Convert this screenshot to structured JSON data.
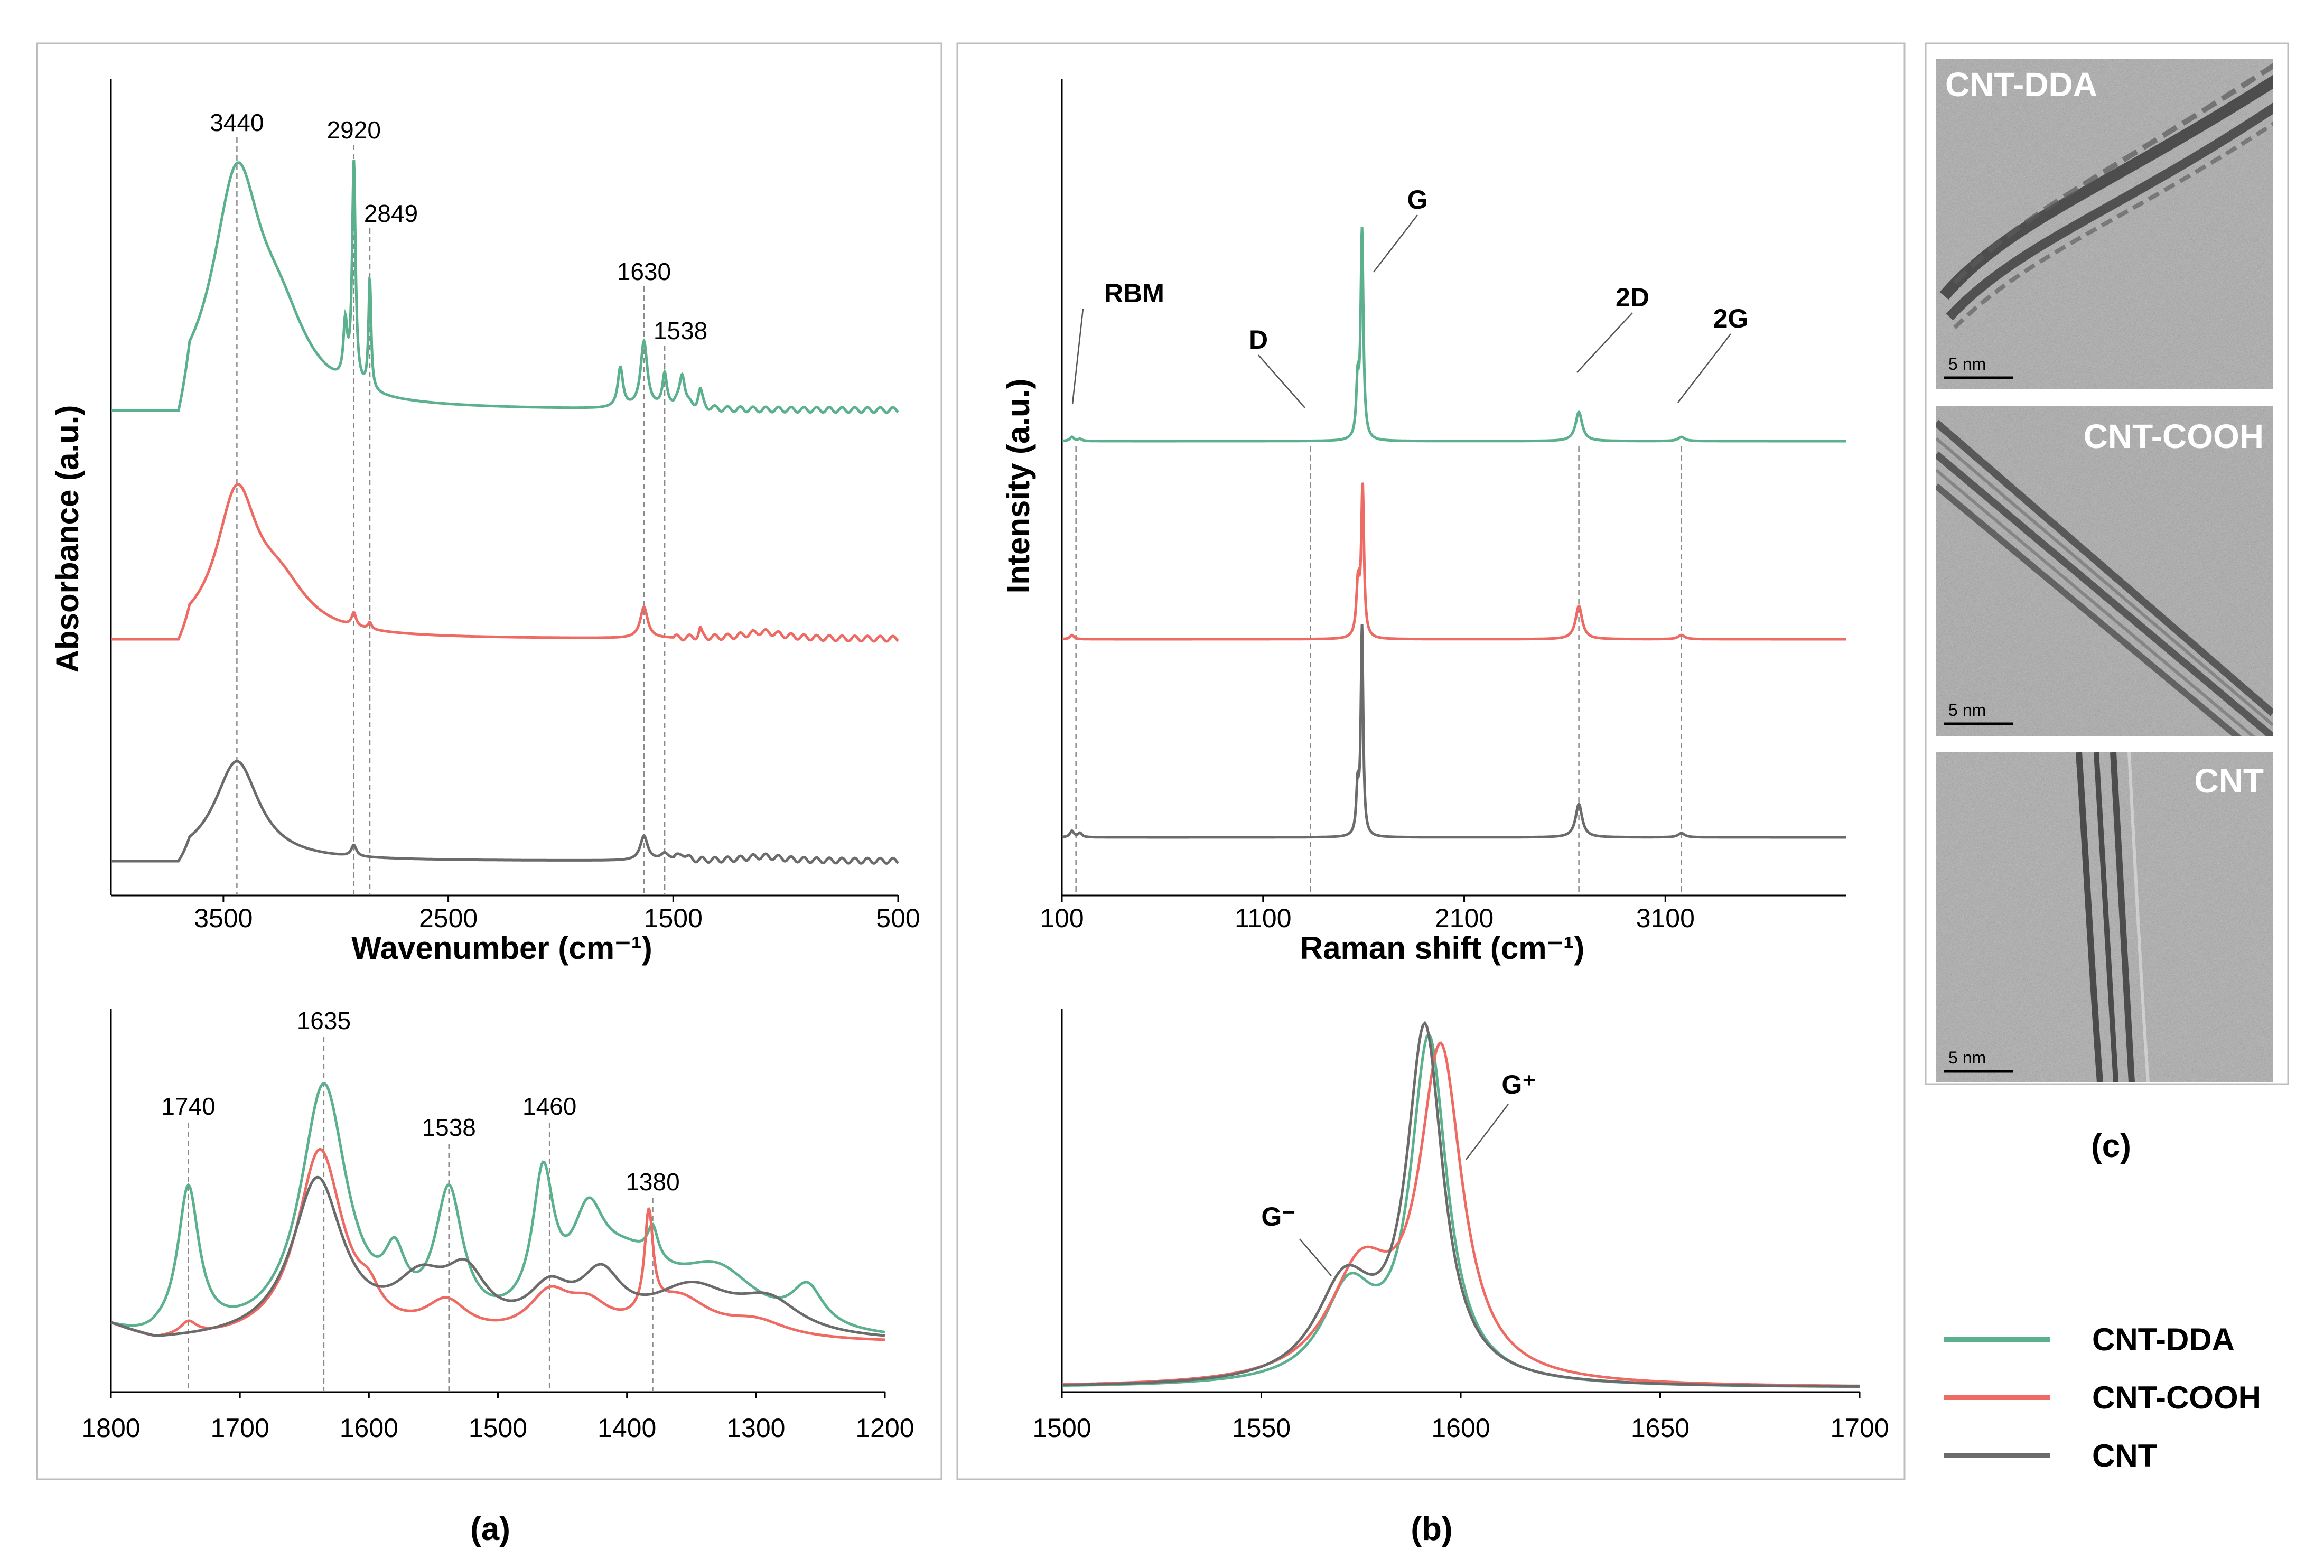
{
  "colors": {
    "cnt_dda": "#5bb08e",
    "cnt_cooh": "#ee6b64",
    "cnt": "#6b6b6b"
  },
  "legend": [
    {
      "label": "CNT-DDA",
      "color": "#5bb08e"
    },
    {
      "label": "CNT-COOH",
      "color": "#ee6b64"
    },
    {
      "label": "CNT",
      "color": "#6b6b6b"
    }
  ],
  "panels": {
    "a": "(a)",
    "b": "(b)",
    "c": "(c)"
  },
  "tem": [
    {
      "label": "CNT-DDA",
      "scale": "5 nm"
    },
    {
      "label": "CNT-COOH",
      "scale": "5 nm"
    },
    {
      "label": "CNT",
      "scale": "5 nm"
    }
  ],
  "chart_data": [
    {
      "id": "ftir_full",
      "type": "line",
      "xlabel": "Wavenumber (cm⁻¹)",
      "ylabel": "Absorbance (a.u.)",
      "xlim": [
        4000,
        500
      ],
      "x_reversed": true,
      "xticks": [
        3500,
        2500,
        1500,
        500
      ],
      "annotations": [
        3440,
        2920,
        2849,
        1630,
        1538
      ],
      "series": [
        {
          "name": "CNT-DDA",
          "offset": 2.0,
          "baseline": 0.03,
          "peaks": [
            [
              3440,
              1.0,
              130
            ],
            [
              3250,
              0.3,
              150
            ],
            [
              2958,
              0.25,
              10
            ],
            [
              2920,
              1.0,
              9
            ],
            [
              2849,
              0.5,
              7
            ],
            [
              1735,
              0.18,
              14
            ],
            [
              1630,
              0.3,
              18
            ],
            [
              1538,
              0.15,
              12
            ],
            [
              1460,
              0.16,
              15
            ],
            [
              1380,
              0.08,
              12
            ]
          ]
        },
        {
          "name": "CNT-COOH",
          "offset": 1.0,
          "baseline": 0.0,
          "peaks": [
            [
              3440,
              0.62,
              110
            ],
            [
              3250,
              0.2,
              150
            ],
            [
              2920,
              0.06,
              12
            ],
            [
              2849,
              0.03,
              10
            ],
            [
              1630,
              0.14,
              20
            ],
            [
              1380,
              0.04,
              8
            ],
            [
              1100,
              0.03,
              100
            ]
          ]
        },
        {
          "name": "CNT",
          "offset": 0.0,
          "baseline": 0.0,
          "peaks": [
            [
              3440,
              0.45,
              120
            ],
            [
              2920,
              0.05,
              14
            ],
            [
              1630,
              0.11,
              20
            ],
            [
              1538,
              0.03,
              20
            ],
            [
              1460,
              0.03,
              20
            ],
            [
              1100,
              0.02,
              100
            ]
          ]
        }
      ]
    },
    {
      "id": "ftir_zoom",
      "type": "line",
      "xlim": [
        1800,
        1200
      ],
      "x_reversed": true,
      "xticks": [
        1800,
        1700,
        1600,
        1500,
        1400,
        1300,
        1200
      ],
      "annotations": [
        1740,
        1635,
        1538,
        1460,
        1380
      ],
      "series": [
        {
          "name": "CNT-DDA",
          "peaks": [
            [
              1740,
              0.55,
              10
            ],
            [
              1635,
              0.95,
              22
            ],
            [
              1580,
              0.2,
              10
            ],
            [
              1538,
              0.5,
              13
            ],
            [
              1465,
              0.52,
              10
            ],
            [
              1430,
              0.3,
              15
            ],
            [
              1380,
              0.12,
              5
            ],
            [
              1400,
              0.25,
              40
            ],
            [
              1330,
              0.22,
              40
            ],
            [
              1260,
              0.15,
              15
            ]
          ]
        },
        {
          "name": "CNT-COOH",
          "peaks": [
            [
              1740,
              0.05,
              8
            ],
            [
              1638,
              0.72,
              22
            ],
            [
              1600,
              0.08,
              10
            ],
            [
              1540,
              0.12,
              20
            ],
            [
              1460,
              0.15,
              20
            ],
            [
              1430,
              0.1,
              20
            ],
            [
              1383,
              0.38,
              4
            ],
            [
              1360,
              0.15,
              30
            ],
            [
              1300,
              0.06,
              30
            ]
          ]
        },
        {
          "name": "CNT",
          "peaks": [
            [
              1640,
              0.6,
              24
            ],
            [
              1560,
              0.18,
              25
            ],
            [
              1525,
              0.2,
              20
            ],
            [
              1460,
              0.15,
              20
            ],
            [
              1420,
              0.2,
              20
            ],
            [
              1350,
              0.18,
              40
            ],
            [
              1290,
              0.12,
              30
            ]
          ]
        }
      ]
    },
    {
      "id": "raman_full",
      "type": "line",
      "xlabel": "Raman shift (cm⁻¹)",
      "ylabel": "Intensity (a.u.)",
      "xlim": [
        100,
        4000
      ],
      "xticks": [
        100,
        1100,
        2100,
        3100
      ],
      "annotations": [
        {
          "label": "RBM",
          "x": 170
        },
        {
          "label": "D",
          "x": 1335
        },
        {
          "label": "G",
          "x": 1590
        },
        {
          "label": "2D",
          "x": 2670
        },
        {
          "label": "2G",
          "x": 3180
        }
      ],
      "series": [
        {
          "name": "CNT-DDA",
          "offset": 2.0,
          "peaks": [
            [
              1592,
              1.0,
              8
            ],
            [
              1570,
              0.25,
              8
            ],
            [
              2670,
              0.14,
              20
            ],
            [
              3180,
              0.02,
              20
            ],
            [
              150,
              0.02,
              12
            ],
            [
              190,
              0.01,
              12
            ]
          ]
        },
        {
          "name": "CNT-COOH",
          "offset": 1.0,
          "peaks": [
            [
              1595,
              0.72,
              8
            ],
            [
              1572,
              0.25,
              10
            ],
            [
              2670,
              0.16,
              20
            ],
            [
              3180,
              0.02,
              20
            ],
            [
              150,
              0.02,
              12
            ]
          ]
        },
        {
          "name": "CNT",
          "offset": 0.0,
          "peaks": [
            [
              1592,
              1.0,
              7
            ],
            [
              1570,
              0.22,
              8
            ],
            [
              2670,
              0.16,
              20
            ],
            [
              3180,
              0.02,
              20
            ],
            [
              150,
              0.03,
              12
            ],
            [
              190,
              0.02,
              12
            ]
          ]
        }
      ]
    },
    {
      "id": "raman_zoom",
      "type": "line",
      "xlim": [
        1500,
        1700
      ],
      "xticks": [
        1500,
        1550,
        1600,
        1650,
        1700
      ],
      "annotations": [
        {
          "label": "G⁻",
          "x": 1571
        },
        {
          "label": "G⁺",
          "x": 1600
        }
      ],
      "series": [
        {
          "name": "CNT-DDA",
          "peaks": [
            [
              1592,
              0.95,
              5.5
            ],
            [
              1572,
              0.25,
              8
            ]
          ]
        },
        {
          "name": "CNT-COOH",
          "peaks": [
            [
              1595,
              0.9,
              6.5
            ],
            [
              1575,
              0.3,
              10
            ]
          ]
        },
        {
          "name": "CNT",
          "peaks": [
            [
              1591,
              0.97,
              5.5
            ],
            [
              1571,
              0.27,
              9
            ]
          ]
        }
      ]
    }
  ]
}
